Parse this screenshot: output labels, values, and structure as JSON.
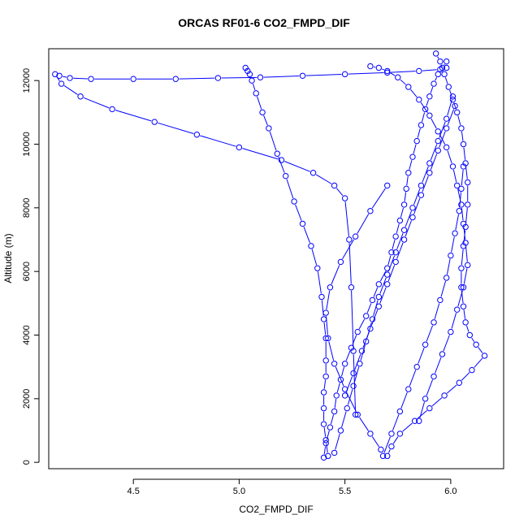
{
  "chart_data": {
    "type": "line",
    "title": "ORCAS RF01-6 CO2_FMPD_DIF",
    "xlabel": "CO2_FMPD_DIF",
    "ylabel": "Altitude (m)",
    "xlim": [
      4.1,
      6.25
    ],
    "ylim": [
      -200,
      13000
    ],
    "x_ticks": [
      4.5,
      5.0,
      5.5,
      6.0
    ],
    "x_tick_labels": [
      "4.5",
      "5.0",
      "5.5",
      "6.0"
    ],
    "y_ticks": [
      0,
      2000,
      4000,
      6000,
      8000,
      10000,
      12000
    ],
    "y_tick_labels": [
      "0",
      "2000",
      "4000",
      "6000",
      "8000",
      "10000",
      "12000"
    ],
    "series_color": "#0000ff",
    "marker": "open-circle",
    "series": [
      {
        "x": [
          5.4,
          5.41,
          5.43,
          5.45,
          5.46,
          5.48,
          5.5,
          5.53,
          5.56,
          5.6,
          5.63,
          5.66,
          5.7,
          5.72,
          5.74,
          5.76,
          5.78,
          5.79,
          5.8,
          5.82,
          5.84,
          5.86,
          5.88,
          5.9,
          5.92,
          5.94,
          5.96,
          5.98
        ],
        "y": [
          150,
          600,
          1100,
          1600,
          2100,
          2600,
          3100,
          3600,
          4100,
          4600,
          5100,
          5600,
          6100,
          6600,
          7100,
          7600,
          8100,
          8600,
          9100,
          9600,
          10100,
          10600,
          11100,
          11500,
          11900,
          12200,
          12400,
          12600
        ]
      },
      {
        "x": [
          5.98,
          5.95,
          5.85,
          5.7,
          5.5,
          5.3,
          5.1,
          4.9,
          4.7,
          4.5,
          4.3,
          4.2,
          4.15,
          4.13,
          4.16,
          4.25,
          4.4,
          4.6,
          4.8,
          5.0,
          5.2,
          5.35,
          5.45,
          5.5,
          5.52,
          5.53,
          5.54,
          5.55
        ],
        "y": [
          12400,
          12350,
          12300,
          12250,
          12200,
          12150,
          12100,
          12080,
          12050,
          12050,
          12050,
          12080,
          12150,
          12200,
          11900,
          11500,
          11100,
          10700,
          10300,
          9900,
          9500,
          9100,
          8700,
          8300,
          7000,
          5500,
          3500,
          1500
        ]
      },
      {
        "x": [
          5.42,
          5.41,
          5.4,
          5.4,
          5.4,
          5.41,
          5.41,
          5.41,
          5.4,
          5.39,
          5.37,
          5.34,
          5.3,
          5.26,
          5.22,
          5.18,
          5.14,
          5.11,
          5.08,
          5.06,
          5.05,
          5.04,
          5.03
        ],
        "y": [
          200,
          700,
          1200,
          1700,
          2200,
          2700,
          3200,
          3900,
          4500,
          5200,
          6100,
          6800,
          7500,
          8200,
          9000,
          9700,
          10500,
          11000,
          11600,
          12000,
          12200,
          12300,
          12400
        ]
      },
      {
        "x": [
          5.93,
          5.95,
          5.97,
          5.99,
          6.01,
          6.03,
          6.05,
          6.06,
          6.07,
          6.08,
          6.08,
          6.07,
          6.06,
          6.05,
          6.05,
          6.06,
          6.07,
          6.09,
          6.12,
          6.16,
          6.1,
          6.04,
          5.97,
          5.9,
          5.83,
          5.76,
          5.72,
          5.7
        ],
        "y": [
          12850,
          12600,
          12200,
          11800,
          11400,
          11000,
          10500,
          10000,
          9400,
          8800,
          8100,
          7400,
          6800,
          6100,
          5500,
          4900,
          4400,
          4000,
          3700,
          3350,
          2900,
          2500,
          2100,
          1700,
          1300,
          900,
          500,
          200
        ]
      },
      {
        "x": [
          5.62,
          5.66,
          5.7,
          5.75,
          5.8,
          5.85,
          5.9,
          5.94,
          5.98,
          6.01,
          6.03,
          6.05,
          6.06,
          6.07,
          6.08,
          6.06,
          6.03,
          6.0,
          5.96,
          5.92,
          5.88,
          5.85
        ],
        "y": [
          12450,
          12400,
          12300,
          12100,
          11800,
          11400,
          10900,
          10400,
          9900,
          9300,
          8700,
          8100,
          7500,
          6900,
          6200,
          5500,
          4800,
          4100,
          3400,
          2700,
          2000,
          1300
        ]
      },
      {
        "x": [
          5.45,
          5.48,
          5.51,
          5.54,
          5.57,
          5.6,
          5.63,
          5.66,
          5.7,
          5.74,
          5.78,
          5.82,
          5.86,
          5.9,
          5.94,
          5.98,
          6.01
        ],
        "y": [
          300,
          1000,
          1700,
          2400,
          3100,
          3800,
          4500,
          5200,
          5900,
          6600,
          7300,
          8000,
          8700,
          9400,
          10100,
          10800,
          11500
        ]
      },
      {
        "x": [
          5.68,
          5.72,
          5.76,
          5.8,
          5.84,
          5.88,
          5.92,
          5.95,
          5.98,
          6.0,
          6.02,
          6.04,
          6.05,
          6.06
        ],
        "y": [
          200,
          900,
          1600,
          2300,
          3000,
          3700,
          4400,
          5100,
          5800,
          6500,
          7200,
          7900,
          8600,
          9300
        ]
      },
      {
        "x": [
          5.7,
          5.62,
          5.55,
          5.48,
          5.43,
          5.41,
          5.42,
          5.45,
          5.5,
          5.56,
          5.62,
          5.67
        ],
        "y": [
          8700,
          7900,
          7100,
          6300,
          5500,
          4700,
          3900,
          3100,
          2300,
          1500,
          900,
          400
        ]
      },
      {
        "x": [
          6.02,
          5.98,
          5.94,
          5.9,
          5.86,
          5.82,
          5.78,
          5.74,
          5.7,
          5.66,
          5.62,
          5.58,
          5.54,
          5.5
        ],
        "y": [
          11200,
          10500,
          9800,
          9100,
          8400,
          7700,
          7000,
          6300,
          5600,
          4900,
          4200,
          3500,
          2800,
          2100
        ]
      }
    ]
  }
}
